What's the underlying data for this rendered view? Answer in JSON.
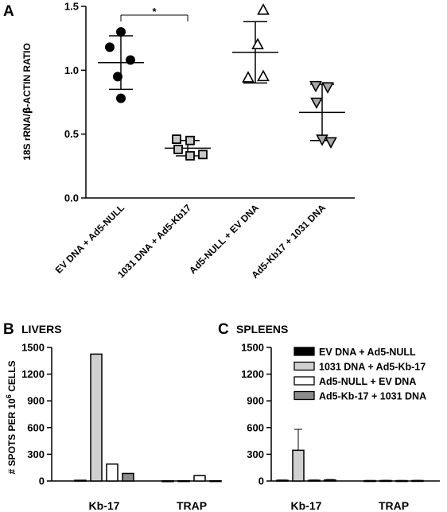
{
  "chart_data": [
    {
      "panel": "A",
      "type": "scatter",
      "ylabel_parts": [
        "18S rRNA/",
        "β",
        "-ACTIN RATIO"
      ],
      "ylim": [
        0,
        1.5
      ],
      "yticks": [
        0,
        0.5,
        1.0,
        1.5
      ],
      "ytick_labels": [
        "0.0",
        "0.5",
        "1.0",
        "1.5"
      ],
      "categories": [
        "EV DNA + Ad5-NULL",
        "1031 DNA + Ad5-Kb17",
        "Ad5-NULL + EV DNA",
        "Ad5-Kb17 + 1031 DNA"
      ],
      "series": [
        {
          "marker": "circle-filled",
          "color": "#000000",
          "points": [
            1.3,
            1.18,
            1.08,
            0.95,
            0.78
          ],
          "mean": 1.06,
          "sd": 0.21
        },
        {
          "marker": "square-gray",
          "color": "#c8c8c8",
          "points": [
            0.46,
            0.45,
            0.38,
            0.33,
            0.34
          ],
          "mean": 0.39,
          "sd": 0.06
        },
        {
          "marker": "triangle-up-open",
          "color": "#ffffff",
          "points": [
            1.47,
            1.2,
            0.95,
            0.94
          ],
          "mean": 1.14,
          "sd": 0.24
        },
        {
          "marker": "triangle-down-gray",
          "color": "#a8a8a8",
          "points": [
            0.88,
            0.87,
            0.75,
            0.46,
            0.44
          ],
          "mean": 0.67,
          "sd": 0.22
        }
      ],
      "significance": {
        "between": [
          0,
          1
        ],
        "label": "*"
      }
    },
    {
      "panel": "B",
      "title": "LIVERS",
      "type": "bar",
      "ylabel_parts": [
        "# SPOTS PER 10",
        "6",
        " CELLS"
      ],
      "ylim": [
        0,
        1500
      ],
      "yticks": [
        0,
        300,
        600,
        900,
        1200,
        1500
      ],
      "categories": [
        "Kb-17",
        "TRAP"
      ],
      "series": [
        {
          "name": "EV DNA + Ad5-NULL",
          "values": [
            8,
            2
          ],
          "errors": [
            0,
            0
          ]
        },
        {
          "name": "1031 DNA + Ad5-Kb-17",
          "values": [
            1425,
            3
          ],
          "errors": [
            0,
            0
          ]
        },
        {
          "name": "Ad5-NULL + EV DNA",
          "values": [
            190,
            60
          ],
          "errors": [
            0,
            0
          ]
        },
        {
          "name": "Ad5-Kb-17 + 1031 DNA",
          "values": [
            85,
            3
          ],
          "errors": [
            0,
            0
          ]
        }
      ]
    },
    {
      "panel": "C",
      "title": "SPLEENS",
      "type": "bar",
      "ylim": [
        0,
        1500
      ],
      "yticks": [
        0,
        300,
        600,
        900,
        1200,
        1500
      ],
      "categories": [
        "Kb-17",
        "TRAP"
      ],
      "series": [
        {
          "name": "EV DNA + Ad5-NULL",
          "values": [
            8,
            4
          ],
          "errors": [
            3,
            2
          ]
        },
        {
          "name": "1031 DNA + Ad5-Kb-17",
          "values": [
            345,
            5
          ],
          "errors": [
            235,
            2
          ]
        },
        {
          "name": "Ad5-NULL + EV DNA",
          "values": [
            8,
            4
          ],
          "errors": [
            3,
            2
          ]
        },
        {
          "name": "Ad5-Kb-17 + 1031 DNA",
          "values": [
            12,
            5
          ],
          "errors": [
            5,
            2
          ]
        }
      ]
    }
  ],
  "legend": {
    "placement": "top-right",
    "items": [
      {
        "label": "EV DNA + Ad5-NULL",
        "color": "#000000"
      },
      {
        "label": "1031 DNA + Ad5-Kb-17",
        "color": "#d0d0d0"
      },
      {
        "label": "Ad5-NULL + EV DNA",
        "color": "#ffffff"
      },
      {
        "label": "Ad5-Kb-17 + 1031 DNA",
        "color": "#8c8c8c"
      }
    ]
  }
}
